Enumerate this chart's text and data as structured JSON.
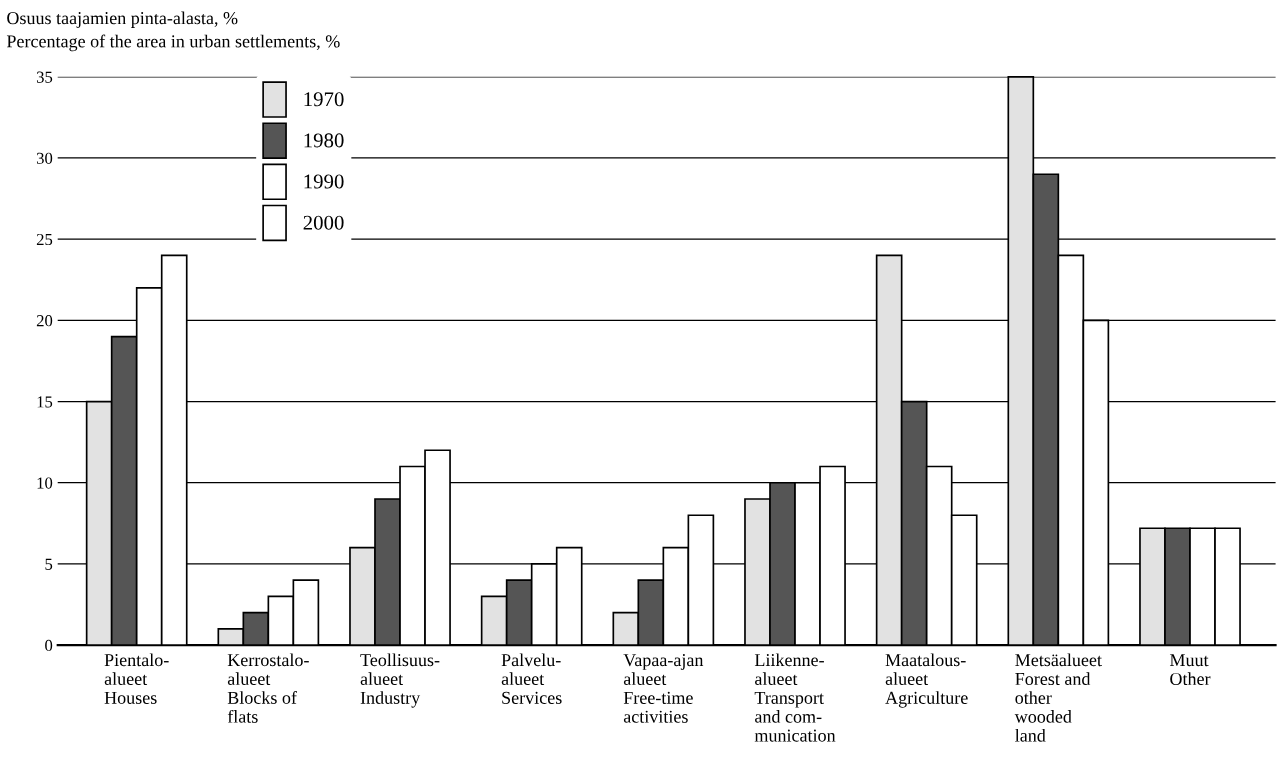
{
  "chart_data": {
    "type": "bar",
    "title": "Osuus taajamien pinta-alasta, %",
    "subtitle": "Percentage of the area in urban settlements, %",
    "categories": [
      "Pientalo-\nalueet\nHouses",
      "Kerrostalo-\nalueet\nBlocks of\nflats",
      "Teollisuus-\nalueet\nIndustry",
      "Palvelu-\nalueet\nServices",
      "Vapaa-ajan\nalueet\nFree-time\nactivities",
      "Liikenne-\nalueet\nTransport\nand com-\nmunication",
      "Maatalous-\nalueet\nAgriculture",
      "Metsäalueet\nForest and\nother\nwooded\nland",
      "Muut\nOther"
    ],
    "series": [
      {
        "name": "1970",
        "color": "#e2e2e2",
        "values": [
          15,
          1,
          6,
          3,
          2,
          9,
          24,
          35,
          7.2
        ]
      },
      {
        "name": "1980",
        "color": "#555555",
        "values": [
          19,
          2,
          9,
          4,
          4,
          10,
          15,
          29,
          7.2
        ]
      },
      {
        "name": "1990",
        "color": "#ffffff",
        "values": [
          22,
          3,
          11,
          5,
          6,
          10,
          11,
          24,
          7.2
        ]
      },
      {
        "name": "2000",
        "color": "#ffffff",
        "values": [
          24,
          4,
          12,
          6,
          8,
          11,
          8,
          20,
          7.2
        ]
      }
    ],
    "ylim": [
      0,
      35
    ],
    "yticks": [
      0,
      5,
      10,
      15,
      20,
      25,
      30,
      35
    ],
    "grid": "y",
    "legend": "top left"
  }
}
